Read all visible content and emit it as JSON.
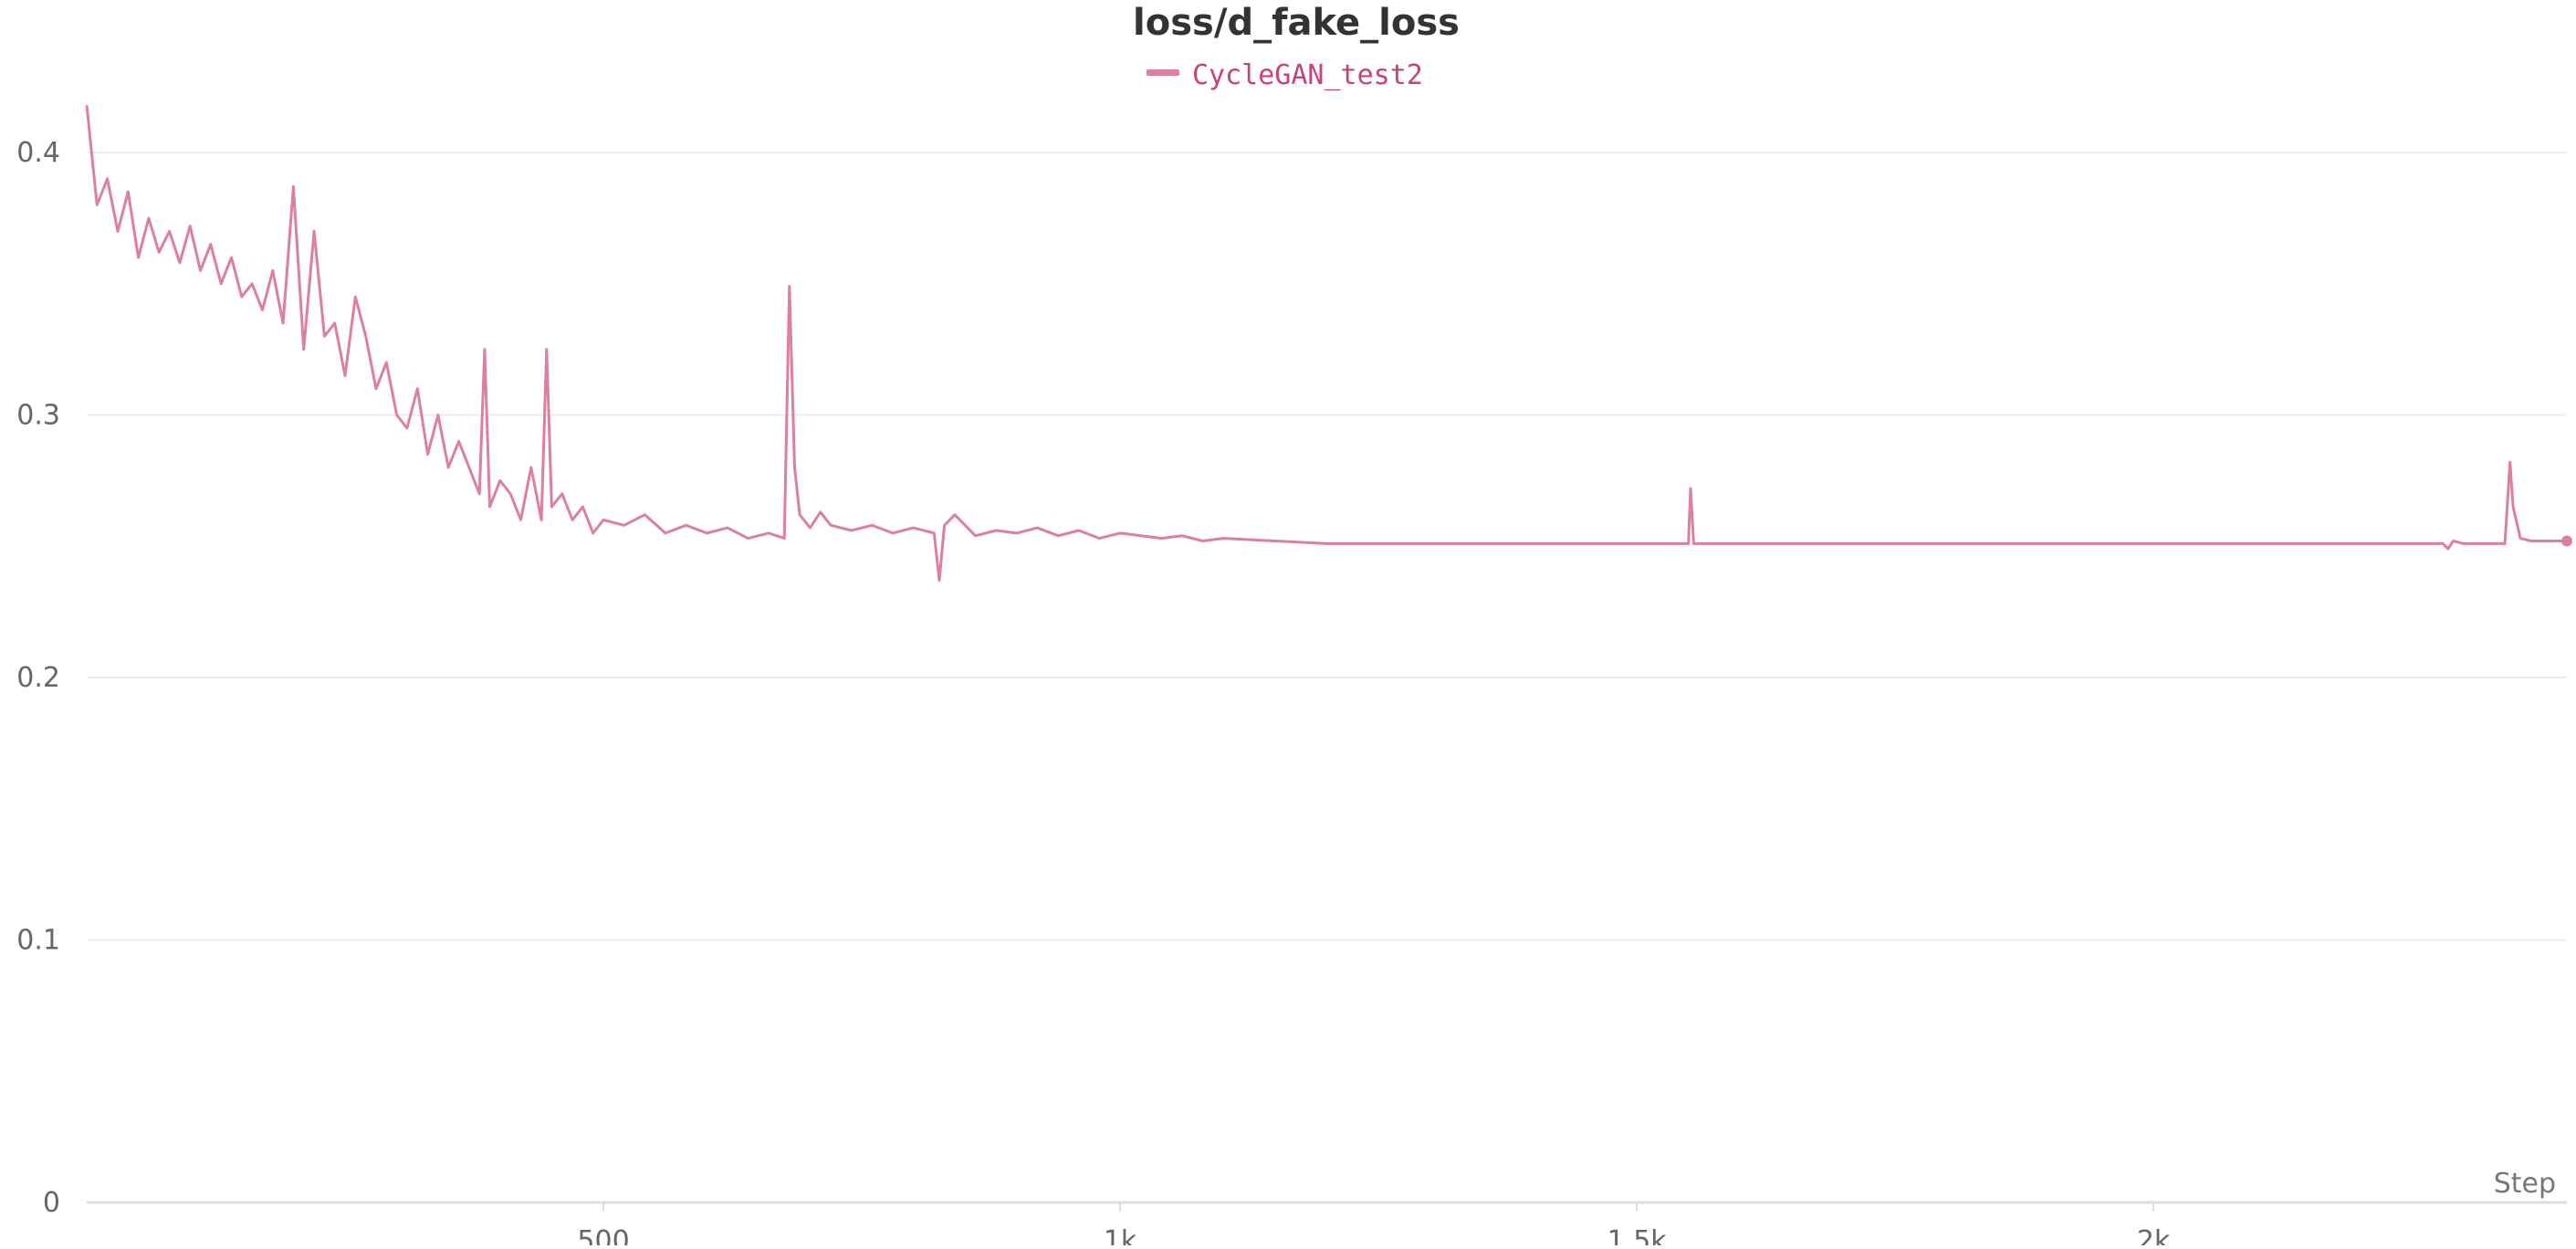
{
  "chart_data": {
    "type": "line",
    "title": "loss/d_fake_loss",
    "xlabel": "Step",
    "ylabel": "",
    "xlim": [
      0,
      2400
    ],
    "ylim": [
      0,
      0.42
    ],
    "x_ticks": [
      500,
      1000,
      1500,
      2000
    ],
    "x_tick_labels": [
      "500",
      "1k",
      "1.5k",
      "2k"
    ],
    "y_ticks": [
      0,
      0.1,
      0.2,
      0.3,
      0.4
    ],
    "y_tick_labels": [
      "0",
      "0.1",
      "0.2",
      "0.3",
      "0.4"
    ],
    "grid": true,
    "legend_position": "top-center",
    "series": [
      {
        "name": "CycleGAN_test2",
        "color": "#dc7fa0",
        "legend_text_color": "#c9417a",
        "x": [
          0,
          10,
          20,
          30,
          40,
          50,
          60,
          70,
          80,
          90,
          100,
          110,
          120,
          130,
          140,
          150,
          160,
          170,
          180,
          190,
          200,
          210,
          220,
          230,
          240,
          250,
          260,
          270,
          280,
          290,
          300,
          310,
          320,
          330,
          340,
          350,
          360,
          370,
          380,
          385,
          390,
          400,
          410,
          420,
          430,
          440,
          445,
          450,
          460,
          470,
          480,
          490,
          500,
          520,
          540,
          560,
          580,
          600,
          620,
          640,
          660,
          675,
          680,
          685,
          690,
          700,
          710,
          720,
          740,
          760,
          780,
          800,
          820,
          825,
          830,
          840,
          860,
          880,
          900,
          920,
          940,
          960,
          980,
          1000,
          1020,
          1040,
          1060,
          1080,
          1100,
          1150,
          1200,
          1250,
          1300,
          1350,
          1400,
          1450,
          1500,
          1550,
          1552,
          1555,
          1600,
          1700,
          1800,
          1900,
          2000,
          2100,
          2200,
          2280,
          2285,
          2290,
          2300,
          2340,
          2345,
          2348,
          2355,
          2365,
          2380,
          2400
        ],
        "y": [
          0.418,
          0.38,
          0.39,
          0.37,
          0.385,
          0.36,
          0.375,
          0.362,
          0.37,
          0.358,
          0.372,
          0.355,
          0.365,
          0.35,
          0.36,
          0.345,
          0.35,
          0.34,
          0.355,
          0.335,
          0.387,
          0.325,
          0.37,
          0.33,
          0.335,
          0.315,
          0.345,
          0.33,
          0.31,
          0.32,
          0.3,
          0.295,
          0.31,
          0.285,
          0.3,
          0.28,
          0.29,
          0.28,
          0.27,
          0.325,
          0.265,
          0.275,
          0.27,
          0.26,
          0.28,
          0.26,
          0.325,
          0.265,
          0.27,
          0.26,
          0.265,
          0.255,
          0.26,
          0.258,
          0.262,
          0.255,
          0.258,
          0.255,
          0.257,
          0.253,
          0.255,
          0.253,
          0.349,
          0.28,
          0.262,
          0.257,
          0.263,
          0.258,
          0.256,
          0.258,
          0.255,
          0.257,
          0.255,
          0.237,
          0.258,
          0.262,
          0.254,
          0.256,
          0.255,
          0.257,
          0.254,
          0.256,
          0.253,
          0.255,
          0.254,
          0.253,
          0.254,
          0.252,
          0.253,
          0.252,
          0.251,
          0.251,
          0.251,
          0.251,
          0.251,
          0.251,
          0.251,
          0.251,
          0.272,
          0.251,
          0.251,
          0.251,
          0.251,
          0.251,
          0.251,
          0.251,
          0.251,
          0.251,
          0.249,
          0.252,
          0.251,
          0.251,
          0.282,
          0.265,
          0.253,
          0.252,
          0.252,
          0.252
        ]
      }
    ]
  }
}
